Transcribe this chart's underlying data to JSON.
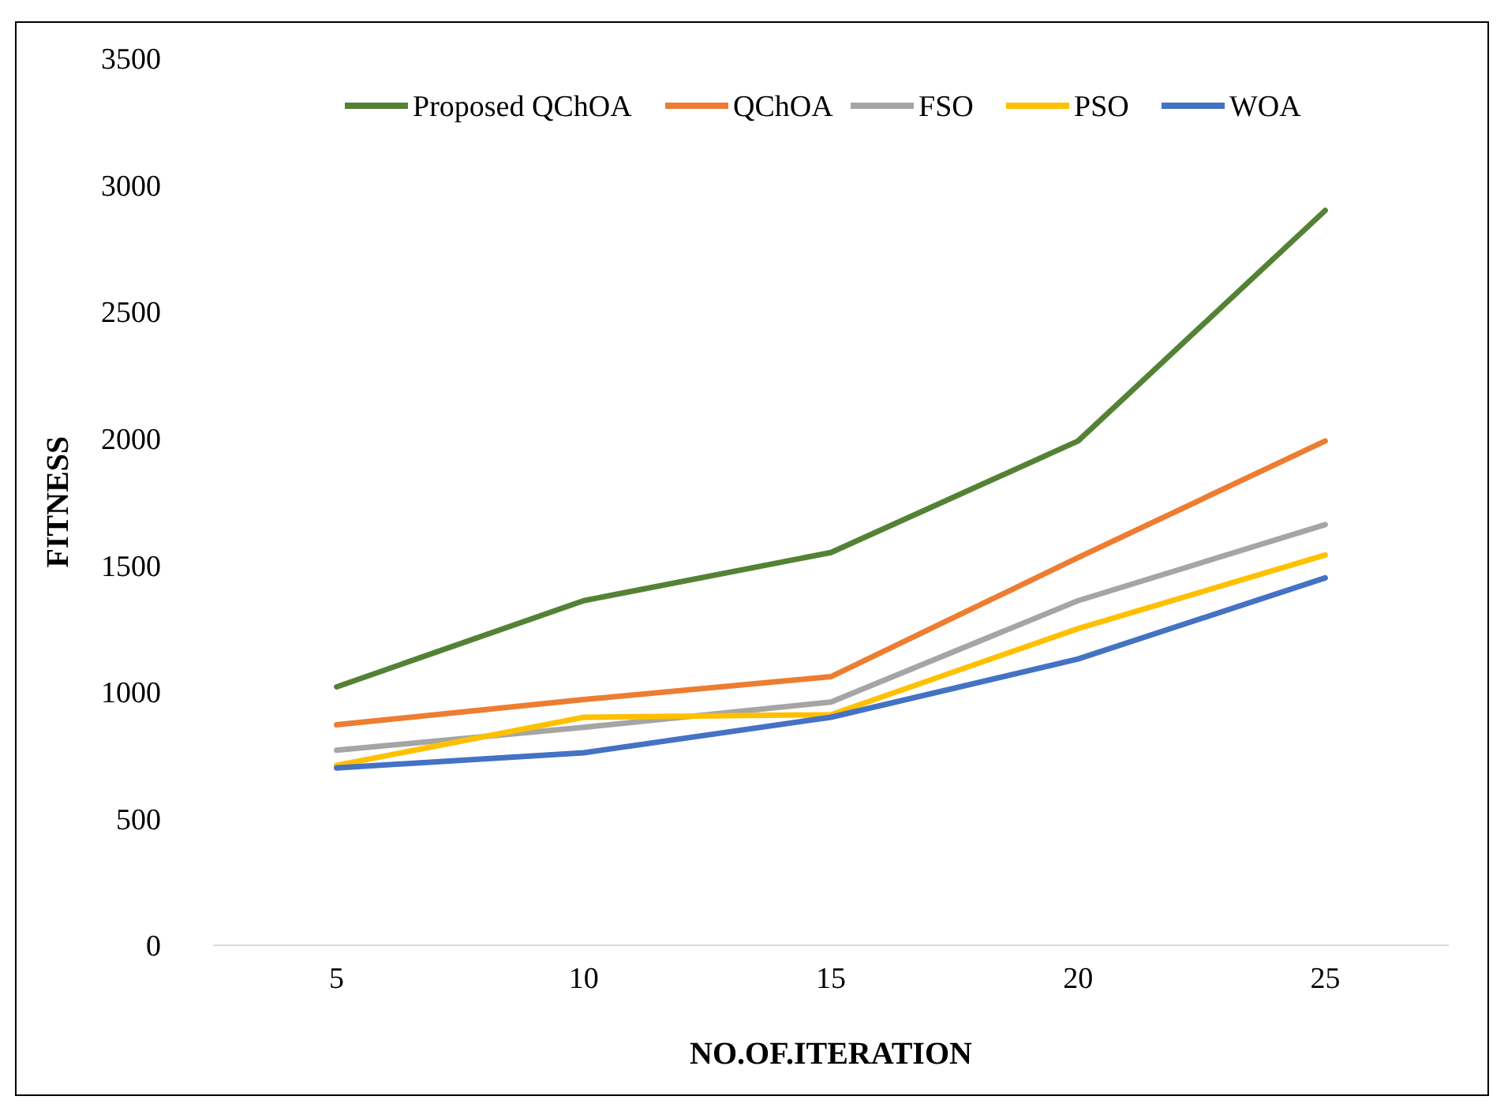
{
  "chart_data": {
    "type": "line",
    "xlabel": "NO.OF.ITERATION",
    "ylabel": "FITNESS",
    "categories": [
      "5",
      "10",
      "15",
      "20",
      "25"
    ],
    "ylim": [
      0,
      3500
    ],
    "yticks": [
      0,
      500,
      1000,
      1500,
      2000,
      2500,
      3000,
      3500
    ],
    "grid": false,
    "legend": "top",
    "series": [
      {
        "name": "Proposed QChOA",
        "color": "#548235",
        "values": [
          1020,
          1360,
          1550,
          1990,
          2900
        ]
      },
      {
        "name": "QChOA",
        "color": "#ed7d31",
        "values": [
          870,
          970,
          1060,
          1530,
          1990
        ]
      },
      {
        "name": "FSO",
        "color": "#a5a5a5",
        "values": [
          770,
          860,
          960,
          1360,
          1660
        ]
      },
      {
        "name": "PSO",
        "color": "#ffc000",
        "values": [
          710,
          900,
          910,
          1250,
          1540
        ]
      },
      {
        "name": "WOA",
        "color": "#4472c4",
        "values": [
          700,
          760,
          900,
          1130,
          1450
        ]
      }
    ]
  }
}
